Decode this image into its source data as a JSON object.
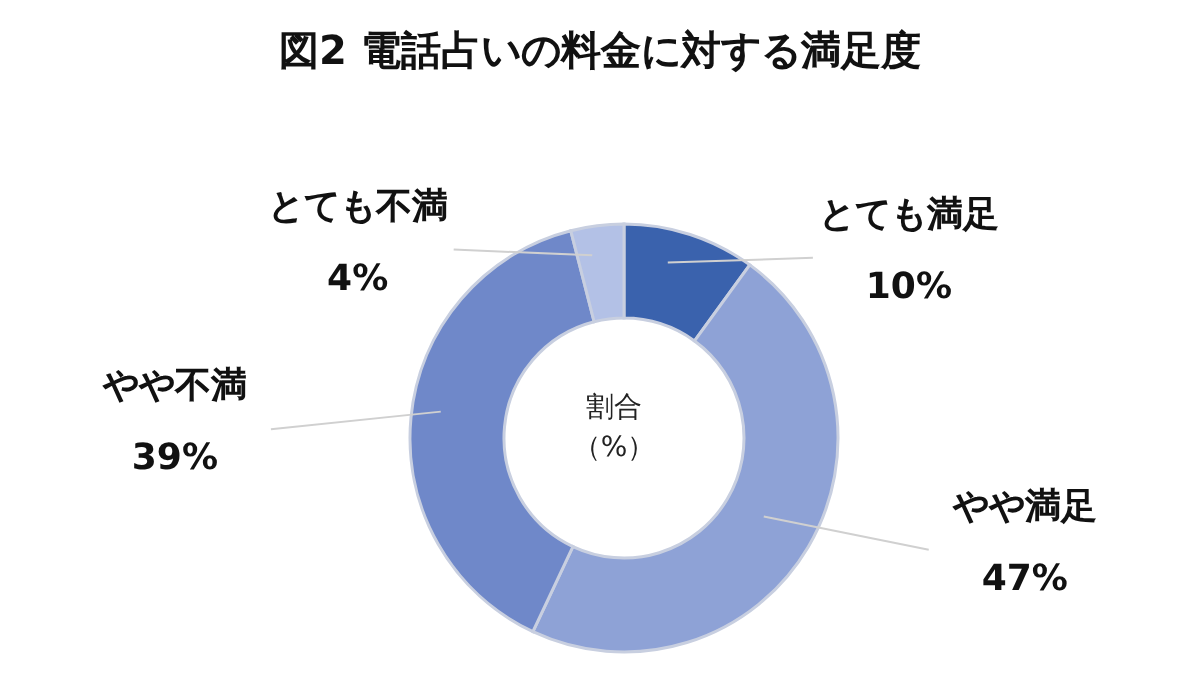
{
  "chart_data": {
    "type": "donut",
    "title": "図2 電話占いの料金に対する満足度",
    "categories": [
      "とても満足",
      "やや満足",
      "やや不満",
      "とても不満"
    ],
    "values": [
      10,
      47,
      39,
      4
    ],
    "value_labels": [
      "10%",
      "47%",
      "39%",
      "4%"
    ],
    "colors": [
      "#3a62ad",
      "#8ea2d6",
      "#6f88c9",
      "#b3c1e6"
    ],
    "annotations": [
      "割合",
      "（%）"
    ]
  }
}
